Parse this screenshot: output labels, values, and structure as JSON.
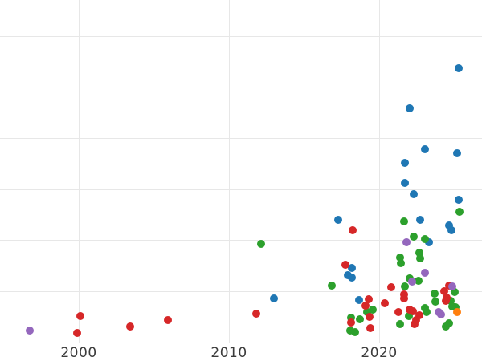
{
  "chart_data": {
    "type": "scatter",
    "title": "",
    "xlabel": "",
    "ylabel": "",
    "grid": true,
    "legend_position": "none",
    "x_axis": {
      "tick_labels": [
        "2000",
        "2010",
        "2020"
      ],
      "tick_values": [
        2000,
        2010,
        2020
      ],
      "domain": [
        1994.76,
        2026.84
      ]
    },
    "y_axis": {
      "tick_labels": [],
      "unlabeled": true,
      "gridline_values": [
        1,
        2,
        3,
        4,
        5,
        6
      ],
      "domain": [
        0,
        6.71
      ],
      "unit": "gridline-intervals"
    },
    "series": [
      {
        "name": "blue",
        "color": "#1f77b4",
        "points": [
          [
            2025.29,
            5.37
          ],
          [
            2022.03,
            4.59
          ],
          [
            2023.05,
            3.79
          ],
          [
            2025.19,
            3.71
          ],
          [
            2021.71,
            3.52
          ],
          [
            2021.7,
            3.13
          ],
          [
            2022.27,
            2.91
          ],
          [
            2025.29,
            2.8
          ],
          [
            2017.27,
            2.4
          ],
          [
            2022.74,
            2.41
          ],
          [
            2024.65,
            2.29
          ],
          [
            2024.81,
            2.2
          ],
          [
            2023.29,
            1.96
          ],
          [
            2018.16,
            1.46
          ],
          [
            2017.93,
            1.32
          ],
          [
            2018.2,
            1.28
          ],
          [
            2012.98,
            0.86
          ],
          [
            2018.65,
            0.83
          ]
        ]
      },
      {
        "name": "green",
        "color": "#2ca02c",
        "points": [
          [
            2025.35,
            2.56
          ],
          [
            2021.68,
            2.37
          ],
          [
            2012.14,
            1.93
          ],
          [
            2022.3,
            2.07
          ],
          [
            2023.07,
            2.03
          ],
          [
            2022.66,
            1.76
          ],
          [
            2022.74,
            1.65
          ],
          [
            2021.41,
            1.67
          ],
          [
            2021.46,
            1.55
          ],
          [
            2022.03,
            1.26
          ],
          [
            2022.62,
            1.21
          ],
          [
            2016.82,
            1.11
          ],
          [
            2021.73,
            1.1
          ],
          [
            2023.67,
            0.96
          ],
          [
            2025.01,
            0.99
          ],
          [
            2023.73,
            0.8
          ],
          [
            2024.76,
            0.82
          ],
          [
            2024.88,
            0.71
          ],
          [
            2025.08,
            0.69
          ],
          [
            2023.05,
            0.68
          ],
          [
            2023.17,
            0.6
          ],
          [
            2019.57,
            0.65
          ],
          [
            2018.1,
            0.48
          ],
          [
            2018.73,
            0.46
          ],
          [
            2019.2,
            0.6
          ],
          [
            2021.95,
            0.52
          ],
          [
            2021.39,
            0.36
          ],
          [
            2018.07,
            0.23
          ],
          [
            2018.4,
            0.21
          ],
          [
            2024.67,
            0.38
          ],
          [
            2024.44,
            0.31
          ]
        ]
      },
      {
        "name": "red",
        "color": "#d62728",
        "points": [
          [
            1999.89,
            0.19
          ],
          [
            2000.12,
            0.52
          ],
          [
            2003.41,
            0.32
          ],
          [
            2005.92,
            0.44
          ],
          [
            2011.82,
            0.57
          ],
          [
            2018.25,
            2.2
          ],
          [
            2017.75,
            1.52
          ],
          [
            2020.79,
            1.09
          ],
          [
            2021.68,
            0.94
          ],
          [
            2021.63,
            0.86
          ],
          [
            2024.67,
            1.12
          ],
          [
            2024.32,
            1.0
          ],
          [
            2024.49,
            0.88
          ],
          [
            2024.44,
            0.82
          ],
          [
            2020.37,
            0.77
          ],
          [
            2019.32,
            0.85
          ],
          [
            2019.09,
            0.73
          ],
          [
            2019.36,
            0.51
          ],
          [
            2019.41,
            0.29
          ],
          [
            2018.1,
            0.39
          ],
          [
            2021.28,
            0.6
          ],
          [
            2022.01,
            0.65
          ],
          [
            2022.22,
            0.61
          ],
          [
            2022.65,
            0.54
          ],
          [
            2022.46,
            0.44
          ],
          [
            2022.33,
            0.36
          ]
        ]
      },
      {
        "name": "purple",
        "color": "#9467bd",
        "points": [
          [
            1996.74,
            0.24
          ],
          [
            2021.82,
            1.96
          ],
          [
            2022.17,
            1.19
          ],
          [
            2023.07,
            1.36
          ],
          [
            2024.84,
            1.1
          ],
          [
            2023.96,
            0.6
          ],
          [
            2024.12,
            0.55
          ]
        ]
      },
      {
        "name": "orange",
        "color": "#ff7f0e",
        "points": [
          [
            2025.19,
            0.59
          ]
        ]
      }
    ],
    "colors": {
      "grid": "#e7e7e7",
      "tick_label": "#3b3b3b",
      "background": "#ffffff"
    }
  }
}
